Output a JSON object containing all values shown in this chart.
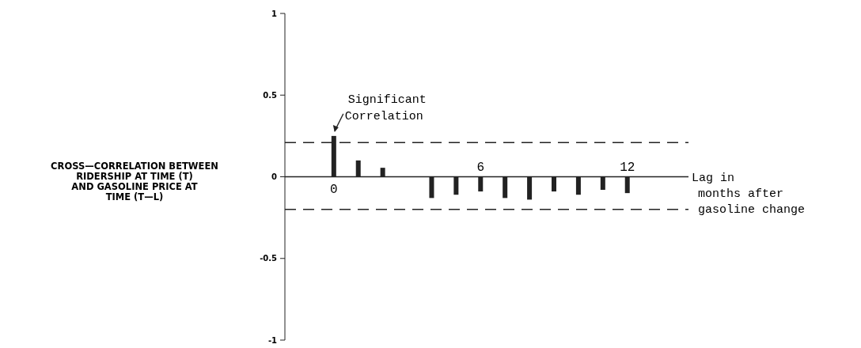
{
  "chart_data": {
    "type": "bar",
    "ylabel": "CROSS—CORRELATION BETWEEN\nRIDERSHIP AT TIME (T)\nAND GASOLINE PRICE AT\nTIME (T—L)",
    "xlabel": "Lag in\nmonths after\ngasoline change",
    "x": [
      0,
      1,
      2,
      4,
      5,
      6,
      7,
      8,
      9,
      10,
      11,
      12
    ],
    "values": [
      0.25,
      0.1,
      0.055,
      -0.13,
      -0.11,
      -0.09,
      -0.13,
      -0.14,
      -0.09,
      -0.11,
      -0.08,
      -0.1
    ],
    "color": "#222222",
    "xlim": [
      -2,
      14.5
    ],
    "xticks": [
      6,
      12
    ],
    "ylim": [
      -1,
      1
    ],
    "yticks": [
      -1,
      -0.5,
      0,
      0.5,
      1
    ],
    "ref_lines": [
      {
        "axis": "y",
        "value": 0.21,
        "line_style": "dashed",
        "color": "#222222"
      },
      {
        "axis": "y",
        "value": -0.2,
        "line_style": "dashed",
        "color": "#222222"
      }
    ],
    "annotations": [
      {
        "text": "Significant\nCorrelation",
        "x": 0,
        "y": 0.25
      },
      {
        "text": "0",
        "x": 0,
        "y": 0
      }
    ]
  }
}
